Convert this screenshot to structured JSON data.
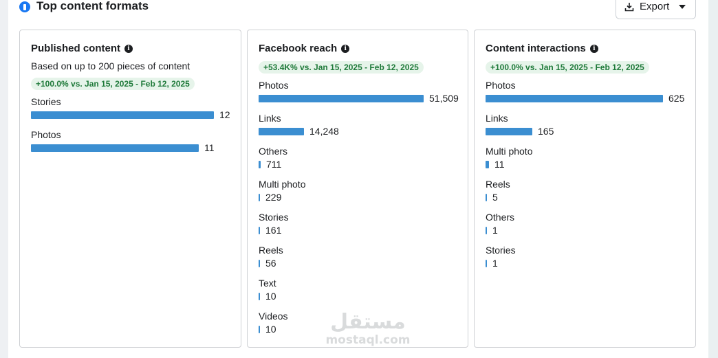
{
  "header": {
    "title": "Top content formats",
    "export_label": "Export"
  },
  "colors": {
    "bar": "#3b8ed1",
    "pill_bg": "#e6f4ea",
    "pill_text": "#1f7a3a"
  },
  "cards": [
    {
      "title": "Published content",
      "subtitle": "Based on up to 200 pieces of content",
      "change": "+100.0% vs. Jan 15, 2025 - Feb 12, 2025",
      "max": 12,
      "items": [
        {
          "label": "Stories",
          "value": 12,
          "display": "12"
        },
        {
          "label": "Photos",
          "value": 11,
          "display": "11"
        }
      ]
    },
    {
      "title": "Facebook reach",
      "subtitle": "",
      "change": "+53.4K% vs. Jan 15, 2025 - Feb 12, 2025",
      "max": 51509,
      "items": [
        {
          "label": "Photos",
          "value": 51509,
          "display": "51,509"
        },
        {
          "label": "Links",
          "value": 14248,
          "display": "14,248"
        },
        {
          "label": "Others",
          "value": 711,
          "display": "711"
        },
        {
          "label": "Multi photo",
          "value": 229,
          "display": "229"
        },
        {
          "label": "Stories",
          "value": 161,
          "display": "161"
        },
        {
          "label": "Reels",
          "value": 56,
          "display": "56"
        },
        {
          "label": "Text",
          "value": 10,
          "display": "10"
        },
        {
          "label": "Videos",
          "value": 10,
          "display": "10"
        }
      ]
    },
    {
      "title": "Content interactions",
      "subtitle": "",
      "change": "+100.0% vs. Jan 15, 2025 - Feb 12, 2025",
      "max": 625,
      "items": [
        {
          "label": "Photos",
          "value": 625,
          "display": "625"
        },
        {
          "label": "Links",
          "value": 165,
          "display": "165"
        },
        {
          "label": "Multi photo",
          "value": 11,
          "display": "11"
        },
        {
          "label": "Reels",
          "value": 5,
          "display": "5"
        },
        {
          "label": "Others",
          "value": 1,
          "display": "1"
        },
        {
          "label": "Stories",
          "value": 1,
          "display": "1"
        }
      ]
    }
  ],
  "watermark": {
    "arabic": "مستقل",
    "latin": "mostaql.com"
  }
}
